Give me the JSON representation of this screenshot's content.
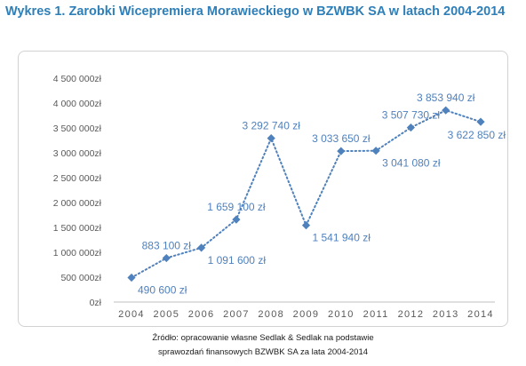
{
  "title": "Wykres 1. Zarobki Wicepremiera Morawieckiego w BZWBK SA w latach 2004-2014",
  "source_line1": "Źródło: opracowanie własne Sedlak & Sedlak na podstawie",
  "source_line2": "sprawozdań finansowych BZWBK SA za lata 2004-2014",
  "colors": {
    "series": "#4f81bd",
    "title": "#2e7fb8",
    "axis": "#595959"
  },
  "chart_data": {
    "type": "line",
    "line_style": "dotted",
    "marker": "diamond",
    "grid": false,
    "ylim": [
      0,
      4500000
    ],
    "yticks": [
      {
        "value": 0,
        "label": "0zł"
      },
      {
        "value": 500000,
        "label": "500 000zł"
      },
      {
        "value": 1000000,
        "label": "1 000 000zł"
      },
      {
        "value": 1500000,
        "label": "1 500 000zł"
      },
      {
        "value": 2000000,
        "label": "2 000 000zł"
      },
      {
        "value": 2500000,
        "label": "2 500 000zł"
      },
      {
        "value": 3000000,
        "label": "3 000 000zł"
      },
      {
        "value": 3500000,
        "label": "3 500 000zł"
      },
      {
        "value": 4000000,
        "label": "4 000 000zł"
      },
      {
        "value": 4500000,
        "label": "4 500 000zł"
      }
    ],
    "categories": [
      "2004",
      "2005",
      "2006",
      "2007",
      "2008",
      "2009",
      "2010",
      "2011",
      "2012",
      "2013",
      "2014"
    ],
    "values": [
      490600,
      883100,
      1091600,
      1659100,
      3292740,
      1541940,
      3033650,
      3041080,
      3507730,
      3853940,
      3622850
    ],
    "data_labels": [
      "490 600 zł",
      "883 100 zł",
      "1 091 600 zł",
      "1 659 100 zł",
      "3 292 740 zł",
      "1 541 940 zł",
      "3 033 650 zł",
      "3 041 080 zł",
      "3 507 730 zł",
      "3 853 940 zł",
      "3 622 850 zł"
    ],
    "label_positions": [
      "right",
      "above",
      "right",
      "above",
      "above",
      "right",
      "above",
      "right",
      "above",
      "above",
      "below"
    ]
  }
}
